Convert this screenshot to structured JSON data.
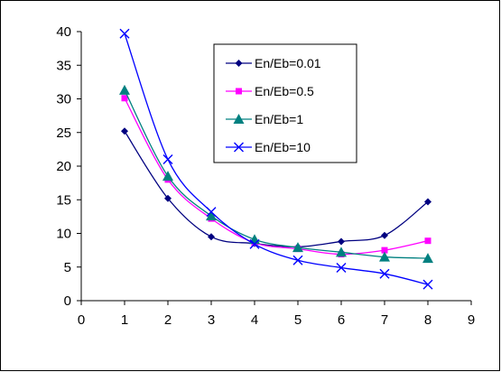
{
  "chart_data": {
    "type": "line",
    "title": "",
    "xlabel": "",
    "ylabel": "",
    "xlim": [
      0,
      9
    ],
    "ylim": [
      0,
      40
    ],
    "xticks": [
      0,
      1,
      2,
      3,
      4,
      5,
      6,
      7,
      8,
      9
    ],
    "yticks": [
      0,
      5,
      10,
      15,
      20,
      25,
      30,
      35,
      40
    ],
    "grid": false,
    "legend_position": "top-right",
    "x": [
      1,
      2,
      3,
      4,
      5,
      6,
      7,
      8
    ],
    "series": [
      {
        "name": "En/Eb=0.01",
        "color": "#000080",
        "marker": "diamond",
        "values": [
          25.2,
          15.2,
          9.5,
          8.5,
          8.0,
          8.8,
          9.7,
          14.7
        ]
      },
      {
        "name": "En/Eb=0.5",
        "color": "#ff00ff",
        "marker": "square",
        "values": [
          30.1,
          18.0,
          12.2,
          8.6,
          7.7,
          6.9,
          7.5,
          8.9
        ]
      },
      {
        "name": "En/Eb=1",
        "color": "#008080",
        "marker": "triangle",
        "values": [
          31.3,
          18.5,
          12.6,
          9.1,
          7.9,
          7.2,
          6.5,
          6.3
        ]
      },
      {
        "name": "En/Eb=10",
        "color": "#0000ff",
        "marker": "x",
        "values": [
          39.7,
          21.0,
          13.2,
          8.4,
          6.0,
          4.9,
          4.0,
          2.4
        ]
      }
    ]
  }
}
